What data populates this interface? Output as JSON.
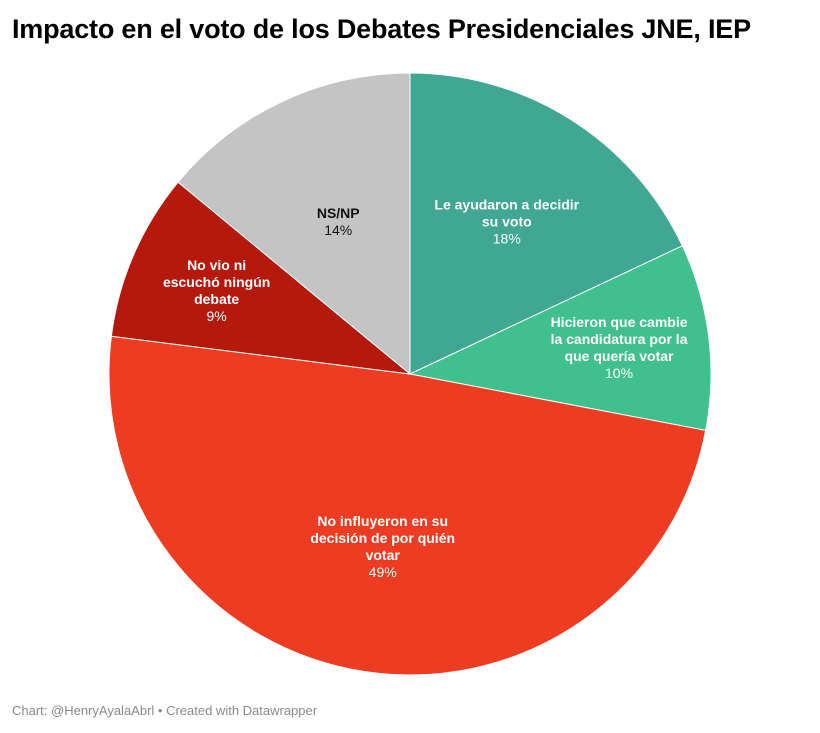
{
  "chart_data": {
    "type": "pie",
    "title": "Impacto en el voto de los Debates Presidenciales JNE, IEP",
    "slices": [
      {
        "label_lines": [
          "Le ayudaron a decidir",
          "su voto"
        ],
        "value": 18,
        "value_label": "18%",
        "color": "#3fa792",
        "text_color": "#ffffff"
      },
      {
        "label_lines": [
          "Hicieron que cambie",
          "la candidatura por la",
          "que quería votar"
        ],
        "value": 10,
        "value_label": "10%",
        "color": "#40c08d",
        "text_color": "#ffffff"
      },
      {
        "label_lines": [
          "No influyeron en su",
          "decisión de por quién",
          "votar"
        ],
        "value": 49,
        "value_label": "49%",
        "color": "#ee3c22",
        "text_color": "#ffffff"
      },
      {
        "label_lines": [
          "No vio ni",
          "escuchó ningún",
          "debate"
        ],
        "value": 9,
        "value_label": "9%",
        "color": "#b5190c",
        "text_color": "#ffffff"
      },
      {
        "label_lines": [
          "NS/NP"
        ],
        "value": 14,
        "value_label": "14%",
        "color": "#c4c4c4",
        "text_color": "#111111"
      }
    ]
  },
  "footer": {
    "text": "Chart: @HenryAyalaAbrl • Created with Datawrapper"
  }
}
